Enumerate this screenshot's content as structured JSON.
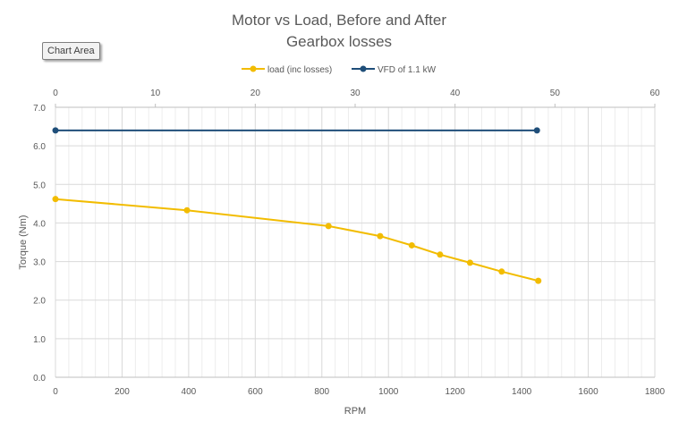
{
  "tooltip": {
    "label": "Chart Area"
  },
  "colors": {
    "load": "#f2bc00",
    "vfd": "#1f4e79",
    "grid_major": "#d9d9d9",
    "grid_minor": "#ececec",
    "axis": "#bfbfbf"
  },
  "chart_data": {
    "type": "line",
    "title": [
      "Motor vs Load, Before and After",
      "Gearbox losses"
    ],
    "xlabel": "RPM",
    "ylabel": "Torque (Nm)",
    "xlim": [
      0,
      1800
    ],
    "ylim": [
      0,
      7
    ],
    "x2lim": [
      0,
      60
    ],
    "x_ticks": [
      "0",
      "200",
      "400",
      "600",
      "800",
      "1000",
      "1200",
      "1400",
      "1600",
      "1800"
    ],
    "x2_ticks": [
      "0",
      "10",
      "20",
      "30",
      "40",
      "50",
      "60"
    ],
    "y_ticks": [
      "0.0",
      "1.0",
      "2.0",
      "3.0",
      "4.0",
      "5.0",
      "6.0",
      "7.0"
    ],
    "legend_position": "top",
    "series": [
      {
        "name": "load (inc losses)",
        "axis": "primary",
        "x": [
          0,
          395,
          820,
          975,
          1070,
          1155,
          1245,
          1340,
          1450
        ],
        "y": [
          4.62,
          4.33,
          3.92,
          3.66,
          3.42,
          3.18,
          2.97,
          2.74,
          2.5
        ]
      },
      {
        "name": "VFD of 1.1 kW",
        "axis": "secondary",
        "x": [
          0,
          48.2
        ],
        "y": [
          6.4,
          6.4
        ]
      }
    ]
  }
}
